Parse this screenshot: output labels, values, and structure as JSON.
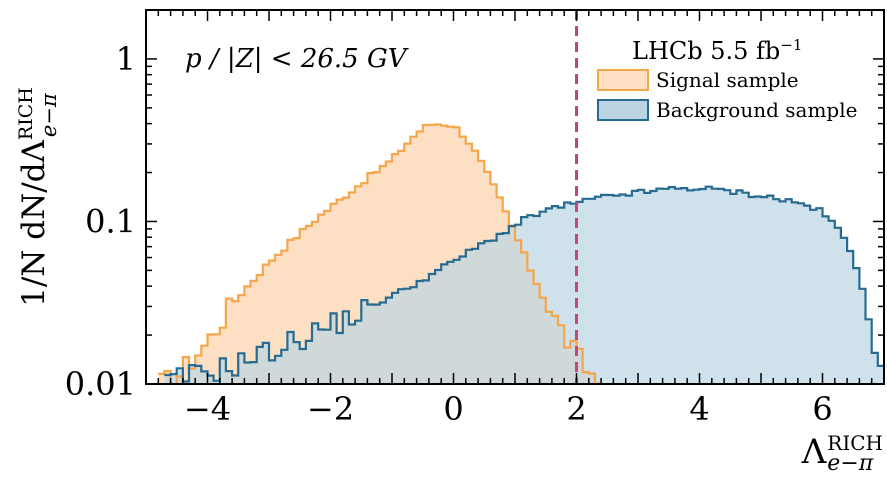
{
  "chart_data": {
    "type": "area",
    "annotation": "p / |Z| < 26.5 GV",
    "experiment_label": "LHCb 5.5 fb",
    "experiment_label_sup": "−1",
    "ylabel": {
      "prefix": "1/N dN/dΛ",
      "sup": "RICH",
      "sub": "e−π"
    },
    "xlabel": {
      "main": "Λ",
      "sup": "RICH",
      "sub": "e−π"
    },
    "xlim": [
      -5,
      7
    ],
    "ylim": [
      0.01,
      2
    ],
    "yscale": "log",
    "x_ticks": [
      {
        "value": -4,
        "label": "−4"
      },
      {
        "value": -2,
        "label": "−2"
      },
      {
        "value": 0,
        "label": "0"
      },
      {
        "value": 2,
        "label": "2"
      },
      {
        "value": 4,
        "label": "4"
      },
      {
        "value": 6,
        "label": "6"
      }
    ],
    "y_ticks": [
      {
        "value": 0.01,
        "label": "0.01"
      },
      {
        "value": 0.1,
        "label": "0.1"
      },
      {
        "value": 1,
        "label": "1"
      }
    ],
    "cut_line": {
      "x": 2,
      "color": "#c2477a",
      "style": "dashed"
    },
    "legend_position": "top-right",
    "series": [
      {
        "name": "Signal sample",
        "fill": "#fde0c4",
        "stroke": "#f5a54a",
        "bin_width": 0.1,
        "points": [
          [
            -4.8,
            0.01
          ],
          [
            -4.5,
            0.011
          ],
          [
            -4.2,
            0.015
          ],
          [
            -4.0,
            0.018
          ],
          [
            -3.8,
            0.024
          ],
          [
            -3.6,
            0.031
          ],
          [
            -3.4,
            0.038
          ],
          [
            -3.2,
            0.046
          ],
          [
            -3.0,
            0.056
          ],
          [
            -2.8,
            0.066
          ],
          [
            -2.6,
            0.078
          ],
          [
            -2.4,
            0.091
          ],
          [
            -2.2,
            0.106
          ],
          [
            -2.0,
            0.122
          ],
          [
            -1.8,
            0.14
          ],
          [
            -1.6,
            0.16
          ],
          [
            -1.4,
            0.185
          ],
          [
            -1.2,
            0.21
          ],
          [
            -1.0,
            0.24
          ],
          [
            -0.8,
            0.29
          ],
          [
            -0.6,
            0.35
          ],
          [
            -0.4,
            0.395
          ],
          [
            -0.2,
            0.4
          ],
          [
            0.0,
            0.39
          ],
          [
            0.2,
            0.33
          ],
          [
            0.4,
            0.25
          ],
          [
            0.6,
            0.18
          ],
          [
            0.8,
            0.125
          ],
          [
            1.0,
            0.085
          ],
          [
            1.2,
            0.056
          ],
          [
            1.4,
            0.038
          ],
          [
            1.6,
            0.027
          ],
          [
            1.8,
            0.02
          ],
          [
            2.0,
            0.015
          ],
          [
            2.2,
            0.012
          ],
          [
            2.4,
            0.01
          ]
        ]
      },
      {
        "name": "Background sample",
        "fill": "#bdd5e2",
        "stroke": "#276b91",
        "bin_width": 0.1,
        "points": [
          [
            -4.7,
            0.01
          ],
          [
            -4.4,
            0.011
          ],
          [
            -4.0,
            0.012
          ],
          [
            -3.6,
            0.013
          ],
          [
            -3.2,
            0.015
          ],
          [
            -2.8,
            0.017
          ],
          [
            -2.4,
            0.02
          ],
          [
            -2.0,
            0.023
          ],
          [
            -1.6,
            0.027
          ],
          [
            -1.2,
            0.032
          ],
          [
            -0.8,
            0.038
          ],
          [
            -0.4,
            0.046
          ],
          [
            0.0,
            0.057
          ],
          [
            0.4,
            0.07
          ],
          [
            0.8,
            0.085
          ],
          [
            1.2,
            0.105
          ],
          [
            1.6,
            0.12
          ],
          [
            2.0,
            0.13
          ],
          [
            2.4,
            0.14
          ],
          [
            2.8,
            0.148
          ],
          [
            3.2,
            0.153
          ],
          [
            3.6,
            0.16
          ],
          [
            4.0,
            0.16
          ],
          [
            4.4,
            0.155
          ],
          [
            4.8,
            0.148
          ],
          [
            5.2,
            0.14
          ],
          [
            5.6,
            0.13
          ],
          [
            5.9,
            0.12
          ],
          [
            6.1,
            0.105
          ],
          [
            6.3,
            0.085
          ],
          [
            6.5,
            0.06
          ],
          [
            6.7,
            0.035
          ],
          [
            6.85,
            0.018
          ],
          [
            7.0,
            0.01
          ]
        ]
      }
    ]
  }
}
